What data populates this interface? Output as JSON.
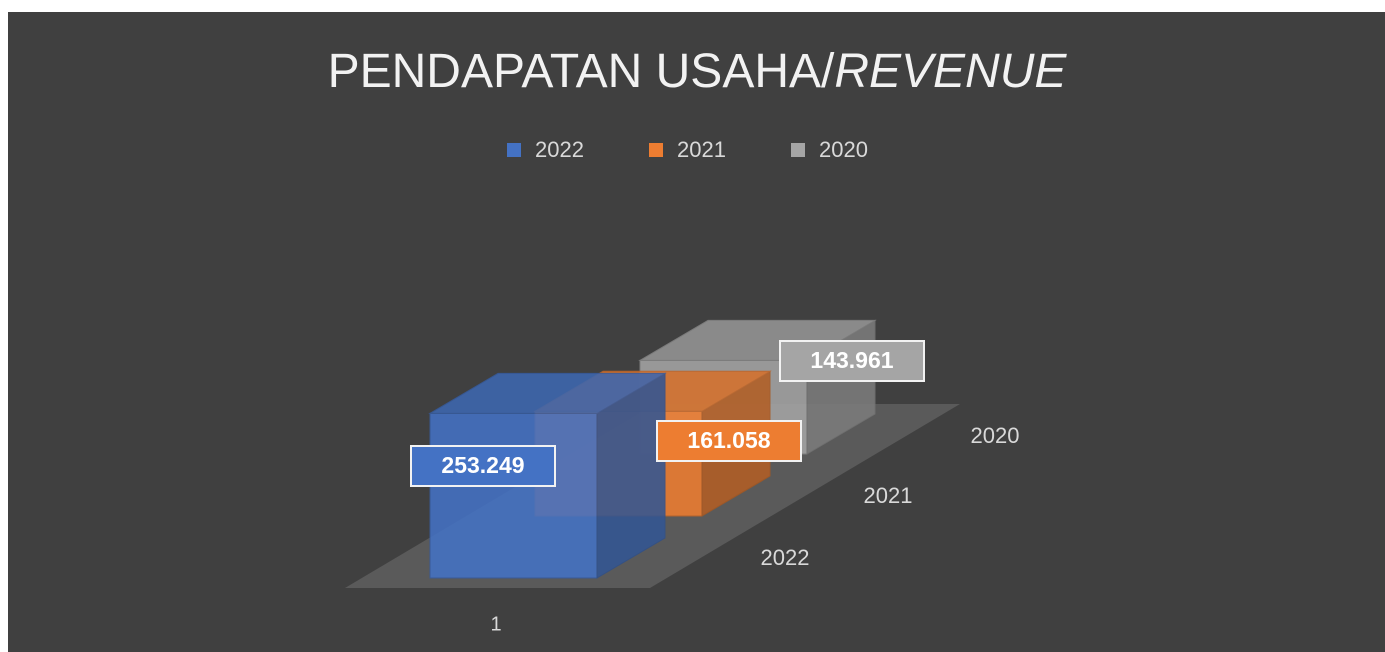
{
  "chart_data": {
    "type": "bar3d",
    "title": [
      "PENDAPATAN USAHA/",
      "REVENUE"
    ],
    "categories": [
      "1"
    ],
    "series": [
      {
        "name": "2022",
        "color": "#4472c4",
        "values": [
          253.249
        ]
      },
      {
        "name": "2021",
        "color": "#ed7d31",
        "values": [
          161.058
        ]
      },
      {
        "name": "2020",
        "color": "#a5a5a5",
        "values": [
          143.961
        ]
      }
    ],
    "legend": "top"
  }
}
